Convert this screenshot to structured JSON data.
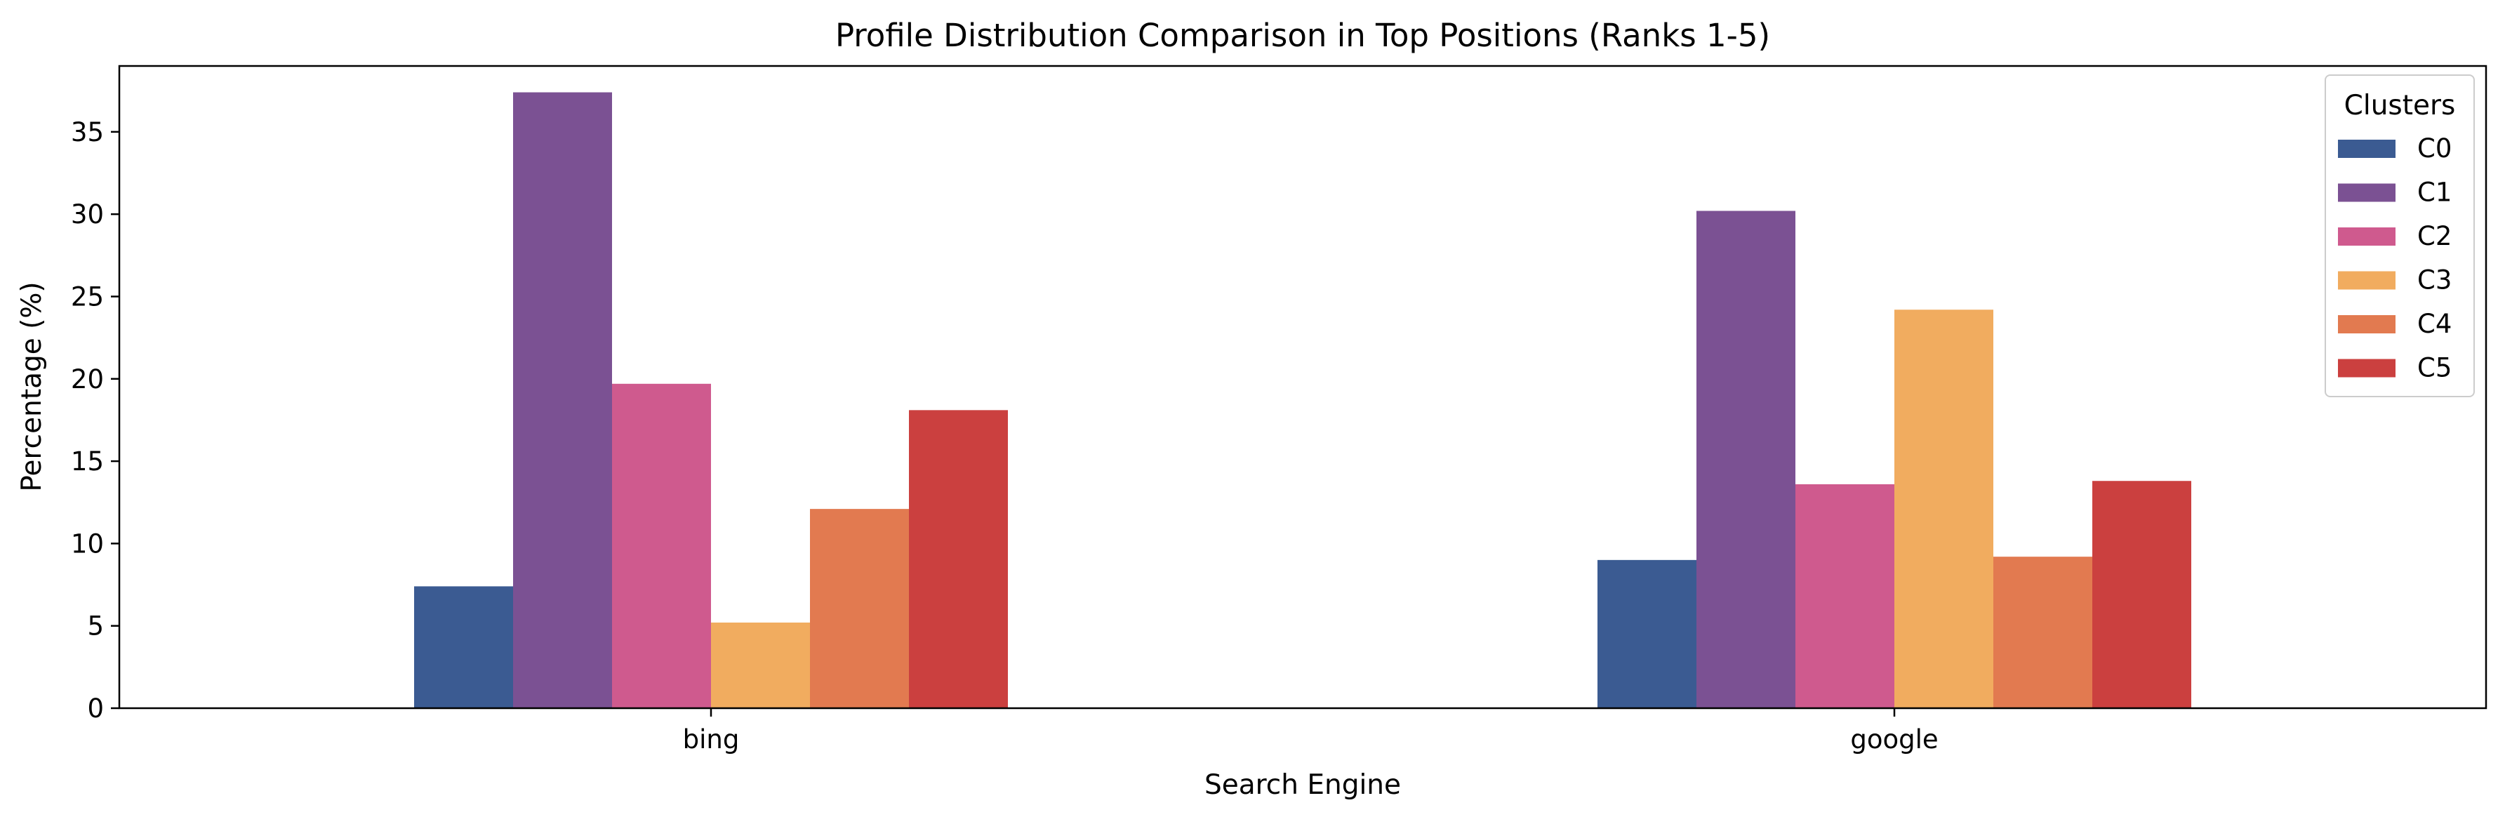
{
  "chart_data": {
    "type": "bar",
    "title": "Profile Distribution Comparison in Top Positions (Ranks 1-5)",
    "xlabel": "Search Engine",
    "ylabel": "Percentage (%)",
    "categories": [
      "bing",
      "google"
    ],
    "ylim": [
      0,
      39
    ],
    "yticks": [
      0,
      5,
      10,
      15,
      20,
      25,
      30,
      35
    ],
    "grid": false,
    "legend": {
      "title": "Clusters",
      "placement": "top-right"
    },
    "series": [
      {
        "name": "C0",
        "color": "#3b5b92",
        "values": [
          7.4,
          9.0
        ]
      },
      {
        "name": "C1",
        "color": "#7b5193",
        "values": [
          37.4,
          30.2
        ]
      },
      {
        "name": "C2",
        "color": "#cf5a8e",
        "values": [
          19.7,
          13.6
        ]
      },
      {
        "name": "C3",
        "color": "#f1ac5f",
        "values": [
          5.2,
          24.2
        ]
      },
      {
        "name": "C4",
        "color": "#e27a50",
        "values": [
          12.1,
          9.2
        ]
      },
      {
        "name": "C5",
        "color": "#cb403f",
        "values": [
          18.1,
          13.8
        ]
      }
    ]
  }
}
